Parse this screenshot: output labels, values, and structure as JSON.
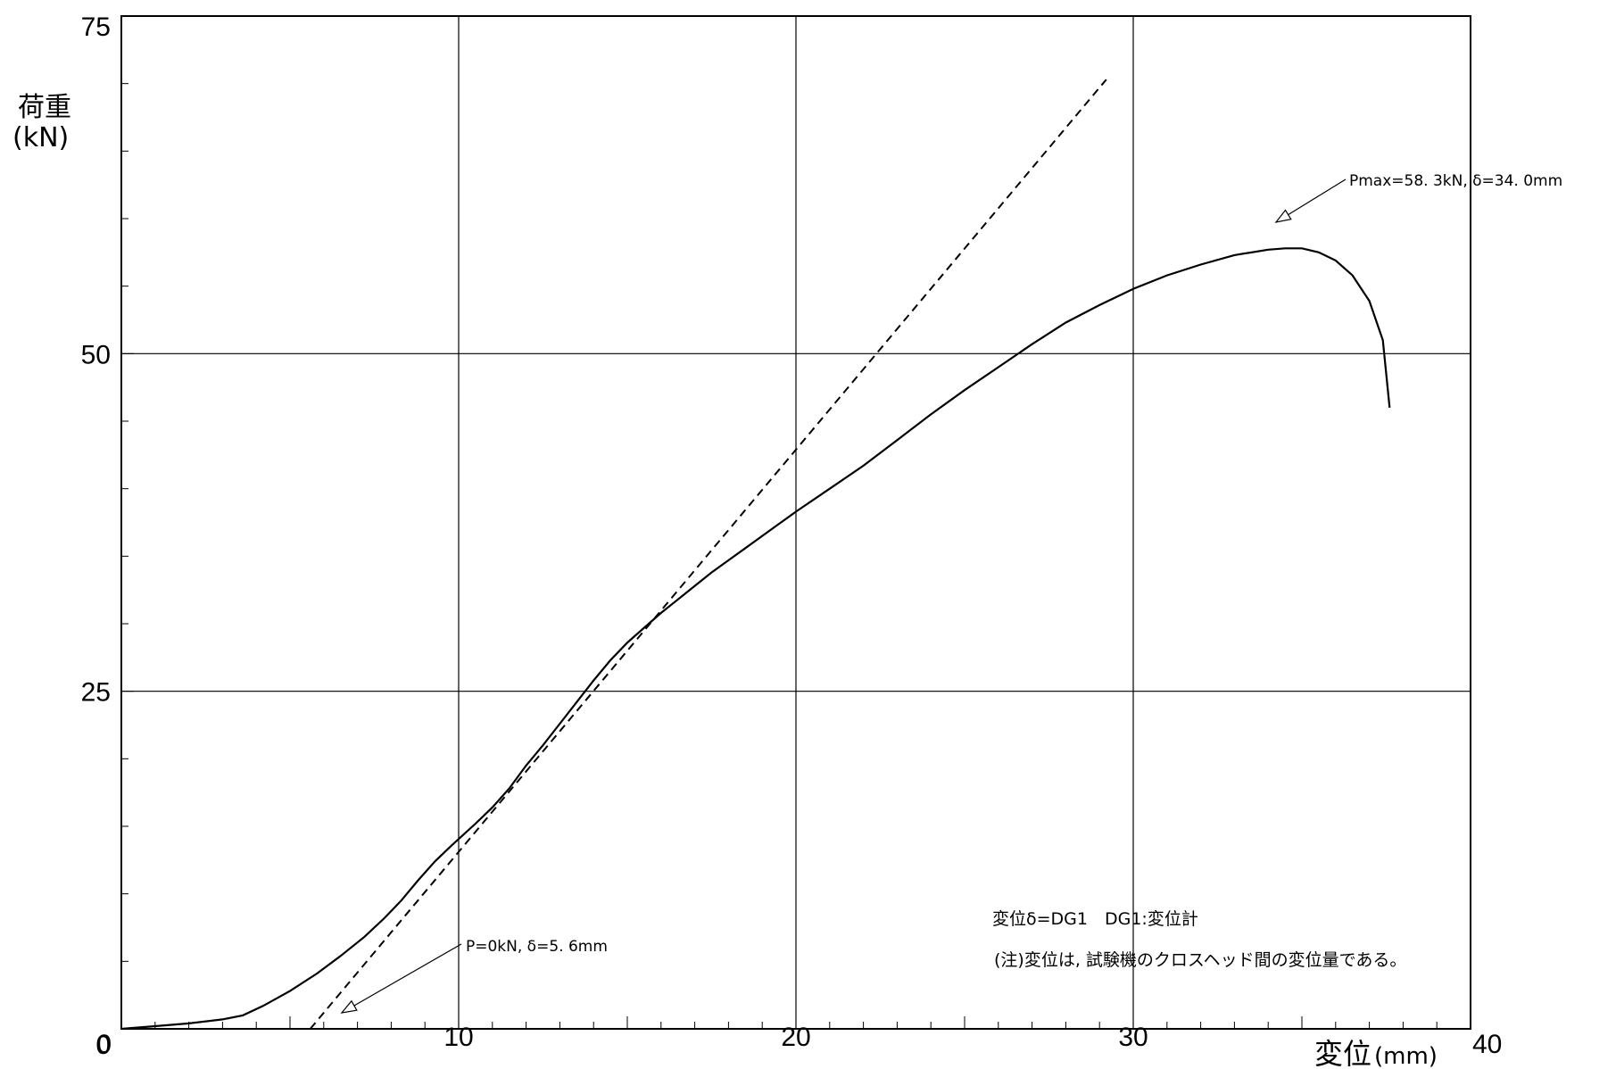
{
  "chart_data": {
    "type": "line",
    "xlabel": "変位",
    "xunit": "(mm)",
    "ylabel": "荷重",
    "yunit": "(kN)",
    "xlim": [
      0,
      40
    ],
    "ylim": [
      0,
      75
    ],
    "grid": true,
    "x_ticks": [
      "0",
      "10",
      "20",
      "30",
      "40"
    ],
    "y_ticks": [
      "0",
      "25",
      "50",
      "75"
    ],
    "series": [
      {
        "style": "solid",
        "x": [
          0,
          1,
          2,
          3,
          3.6,
          4.2,
          5,
          5.8,
          6.5,
          7.2,
          7.8,
          8.3,
          8.8,
          9.3,
          9.8,
          10.5,
          11,
          11.5,
          12,
          12.5,
          13,
          13.5,
          14,
          14.5,
          15,
          15.5,
          16,
          16.5,
          17,
          17.5,
          18,
          18.5,
          19,
          19.5,
          20,
          21,
          22,
          23,
          24,
          25,
          26,
          27,
          28,
          29,
          30,
          31,
          32,
          33,
          34,
          34.5,
          35,
          35.5,
          36,
          36.5,
          37,
          37.4,
          37.6
        ],
        "y": [
          0,
          0.2,
          0.4,
          0.7,
          1.0,
          1.7,
          2.8,
          4.1,
          5.4,
          6.8,
          8.2,
          9.5,
          11.0,
          12.4,
          13.6,
          15.2,
          16.4,
          17.8,
          19.5,
          21.0,
          22.6,
          24.2,
          25.8,
          27.3,
          28.6,
          29.7,
          30.8,
          31.8,
          32.8,
          33.8,
          34.7,
          35.6,
          36.5,
          37.4,
          38.3,
          40.0,
          41.7,
          43.6,
          45.5,
          47.3,
          49.0,
          50.7,
          52.3,
          53.6,
          54.8,
          55.8,
          56.6,
          57.3,
          57.7,
          57.8,
          57.8,
          57.5,
          56.9,
          55.8,
          53.9,
          51.0,
          46.0
        ]
      },
      {
        "style": "dashed",
        "x": [
          5.6,
          29.2
        ],
        "y": [
          0,
          70.3
        ]
      }
    ],
    "annotations": [
      {
        "text": "Pmax=58. 3kN, δ=34. 0mm",
        "x": 34.0,
        "y": 58.3
      },
      {
        "text": "P=0kN, δ=5. 6mm",
        "x": 6.4,
        "y": 0.8
      }
    ],
    "notes": [
      "変位δ=DG1　DG1:変位計",
      "(注)変位は, 試験機のクロスヘッド間の変位量である。"
    ]
  }
}
